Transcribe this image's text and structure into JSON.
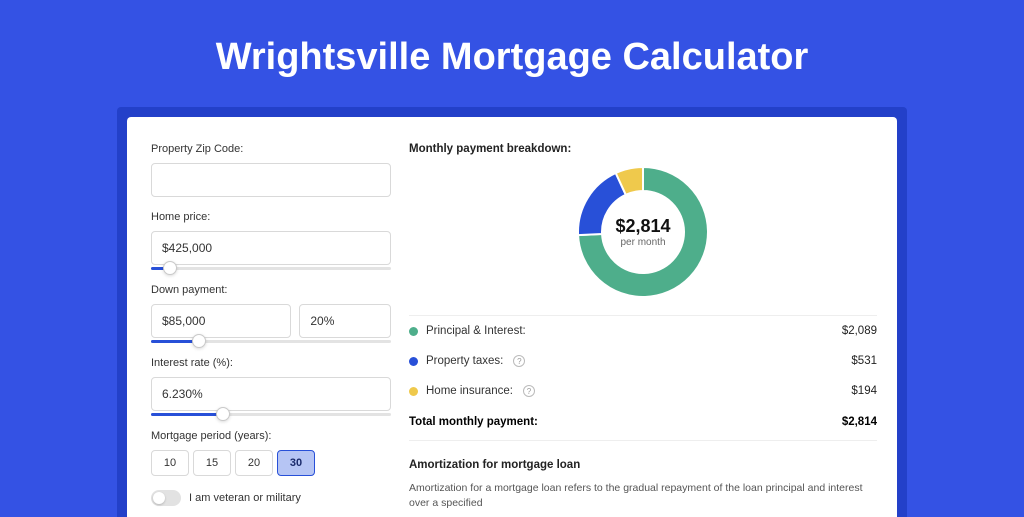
{
  "page": {
    "title": "Wrightsville Mortgage Calculator",
    "background_color": "#3452e4",
    "inner_bar_color": "#2340c9",
    "panel_bg": "#ffffff"
  },
  "form": {
    "zip": {
      "label": "Property Zip Code:",
      "value": ""
    },
    "home_price": {
      "label": "Home price:",
      "value": "$425,000",
      "slider_pct": 8
    },
    "down_payment": {
      "label": "Down payment:",
      "amount": "$85,000",
      "percent": "20%",
      "slider_pct": 20
    },
    "interest_rate": {
      "label": "Interest rate (%):",
      "value": "6.230%",
      "slider_pct": 30
    },
    "period": {
      "label": "Mortgage period (years):",
      "options": [
        "10",
        "15",
        "20",
        "30"
      ],
      "selected": "30"
    },
    "veteran": {
      "label": "I am veteran or military",
      "checked": false
    }
  },
  "breakdown": {
    "heading": "Monthly payment breakdown:",
    "center_value": "$2,814",
    "center_sub": "per month",
    "donut": {
      "type": "donut",
      "size": 130,
      "thickness": 24,
      "hole_color": "#ffffff",
      "slices": [
        {
          "label": "Principal & Interest",
          "value": 2089,
          "color": "#4eae8b"
        },
        {
          "label": "Property taxes",
          "value": 531,
          "color": "#2850d8"
        },
        {
          "label": "Home insurance",
          "value": 194,
          "color": "#efc94c"
        }
      ]
    },
    "items": [
      {
        "label": "Principal & Interest:",
        "value": "$2,089",
        "color": "#4eae8b",
        "help": false
      },
      {
        "label": "Property taxes:",
        "value": "$531",
        "color": "#2850d8",
        "help": true
      },
      {
        "label": "Home insurance:",
        "value": "$194",
        "color": "#efc94c",
        "help": true
      }
    ],
    "total_label": "Total monthly payment:",
    "total_value": "$2,814"
  },
  "amortization": {
    "heading": "Amortization for mortgage loan",
    "body": "Amortization for a mortgage loan refers to the gradual repayment of the loan principal and interest over a specified"
  }
}
